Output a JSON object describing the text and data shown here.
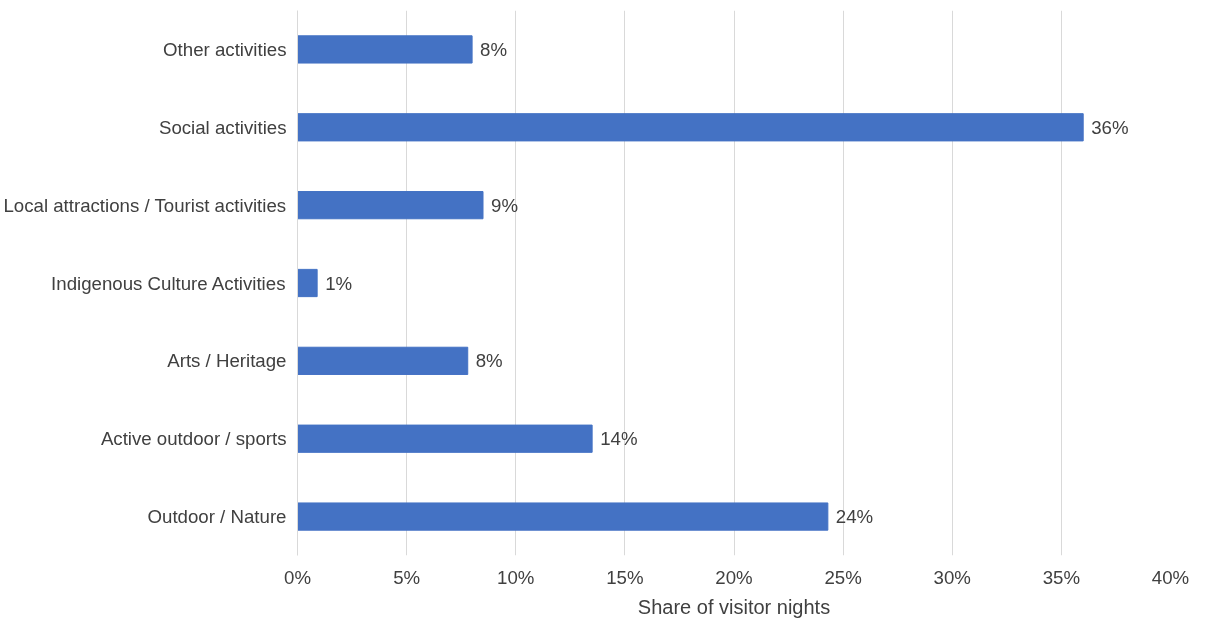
{
  "chart_data": {
    "type": "bar",
    "orientation": "horizontal",
    "xlabel": "Share of visitor nights",
    "categories": [
      "Other activities",
      "Social activities",
      "Local attractions / Tourist activities",
      "Indigenous Culture Activities",
      "Arts / Heritage",
      "Active outdoor / sports",
      "Outdoor / Nature"
    ],
    "values": [
      8.0,
      36.0,
      8.5,
      0.9,
      7.8,
      13.5,
      24.3
    ],
    "value_labels": [
      "8%",
      "36%",
      "9%",
      "1%",
      "8%",
      "14%",
      "24%"
    ],
    "color": "#4472c4",
    "xlim": [
      0,
      40
    ],
    "xticks": [
      {
        "value": 0,
        "label": "0%"
      },
      {
        "value": 5,
        "label": "5%"
      },
      {
        "value": 10,
        "label": "10%"
      },
      {
        "value": 15,
        "label": "15%"
      },
      {
        "value": 20,
        "label": "20%"
      },
      {
        "value": 25,
        "label": "25%"
      },
      {
        "value": 30,
        "label": "30%"
      },
      {
        "value": 35,
        "label": "35%"
      },
      {
        "value": 40,
        "label": "40%"
      }
    ],
    "grid": "x"
  }
}
